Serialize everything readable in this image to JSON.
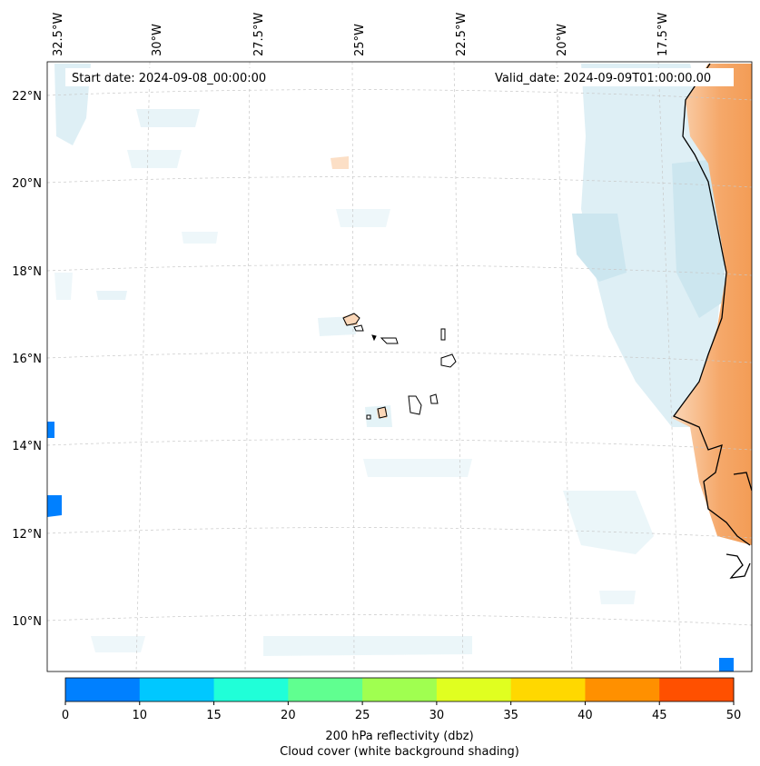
{
  "map": {
    "start_date_text": "Start date: 2024-09-08_00:00:00",
    "valid_date_text": "Valid_date: 2024-09-09T01:00:00.00",
    "longitude_labels": [
      "32.5°W",
      "30°W",
      "27.5°W",
      "25°W",
      "22.5°W",
      "20°W",
      "17.5°W"
    ],
    "latitude_labels": [
      "22°N",
      "20°N",
      "18°N",
      "16°N",
      "14°N",
      "12°N",
      "10°N"
    ],
    "colors": {
      "cloud_light": "#d6ecf3",
      "cloud_mid": "#c0e0ec",
      "land_warm": "#f5a86a",
      "land_warm_light": "#fbd7b8",
      "coastline": "#000000",
      "gridline": "#c8c8c8"
    }
  },
  "colorbar": {
    "ticks": [
      "0",
      "10",
      "15",
      "20",
      "25",
      "30",
      "35",
      "40",
      "45",
      "50"
    ],
    "colors": [
      "#0080ff",
      "#00c8ff",
      "#20ffd8",
      "#60ff90",
      "#a0ff50",
      "#e0ff20",
      "#ffd800",
      "#ff9000",
      "#ff5000"
    ],
    "label_line1": "200 hPa reflectivity (dbz)",
    "label_line2": "Cloud cover (white background shading)"
  }
}
